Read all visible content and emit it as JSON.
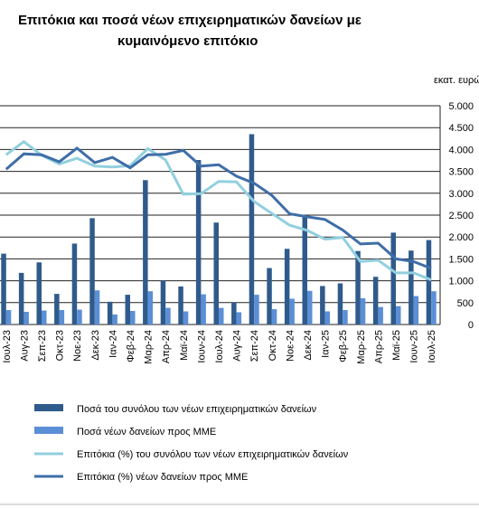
{
  "chart_data": {
    "type": "bar",
    "title": [
      "Επιτόκια και ποσά νέων επιχειρηματικών δανείων με",
      "κυμαινόμενο επιτόκιο"
    ],
    "y_label": "εκατ. ευρώ",
    "categories": [
      "Ιουλ-23",
      "Αυγ-23",
      "Σεπ-23",
      "Οκτ-23",
      "Νοε-23",
      "Δεκ-23",
      "Ιαν-24",
      "Φεβ-24",
      "Μαρ-24",
      "Απρ-24",
      "Μαϊ-24",
      "Ιουν-24",
      "Ιουλ-24",
      "Αυγ-24",
      "Σεπ-24",
      "Οκτ-24",
      "Νοε-24",
      "Δεκ-24",
      "Ιαν-25",
      "Φεβ-25",
      "Μαρ-25",
      "Απρ-25",
      "Μαϊ-25",
      "Ιουν-25",
      "Ιουλ-25"
    ],
    "series": [
      {
        "name": "Ποσά του συνόλου των νέων επιχειρηματικών δανείων",
        "kind": "bar",
        "color": "#2f5b8c",
        "values": [
          1620,
          1180,
          1420,
          700,
          1850,
          2430,
          520,
          680,
          3300,
          1000,
          870,
          3760,
          2330,
          500,
          4350,
          1290,
          1730,
          2480,
          880,
          940,
          1680,
          1090,
          2100,
          1690,
          1930
        ]
      },
      {
        "name": "Ποσά νέων δανείων προς ΜΜΕ",
        "kind": "bar",
        "color": "#5b8fd6",
        "values": [
          330,
          290,
          320,
          330,
          340,
          780,
          230,
          310,
          760,
          380,
          300,
          690,
          380,
          280,
          680,
          350,
          590,
          770,
          300,
          330,
          600,
          400,
          420,
          650,
          760
        ]
      },
      {
        "name": "Επιτόκια (%) του συνόλου των νέων επιχειρηματικών δανείων",
        "kind": "line",
        "color": "#92cfdf",
        "values": [
          3880,
          4180,
          3870,
          3670,
          3800,
          3620,
          3600,
          3630,
          4020,
          3760,
          2980,
          2990,
          3270,
          3260,
          2810,
          2540,
          2270,
          2150,
          1950,
          1990,
          1440,
          1470,
          1180,
          1180,
          1020
        ]
      },
      {
        "name": "Επιτόκια (%) νέων δανείων προς ΜΜΕ",
        "kind": "line",
        "color": "#3f6ea8",
        "values": [
          3550,
          3900,
          3880,
          3720,
          4030,
          3700,
          3820,
          3580,
          3880,
          3890,
          3980,
          3620,
          3650,
          3390,
          3230,
          2950,
          2530,
          2460,
          2400,
          2160,
          1840,
          1860,
          1500,
          1440,
          1280
        ]
      }
    ],
    "ylim": [
      0,
      5000
    ],
    "yticks": [
      0,
      500,
      {
        "value": 1000,
        "label": "1.000"
      },
      {
        "value": 1500,
        "label": "1.500"
      },
      {
        "value": 2000,
        "label": "2.000"
      },
      {
        "value": 2500,
        "label": "2.500"
      },
      {
        "value": 3000,
        "label": "3.000"
      },
      {
        "value": 3500,
        "label": "3.500"
      },
      {
        "value": 4000,
        "label": "4.000"
      },
      {
        "value": 4500,
        "label": "4.500"
      },
      {
        "value": 5000,
        "label": "5.000"
      }
    ],
    "grid": true,
    "legend": "bottom"
  }
}
